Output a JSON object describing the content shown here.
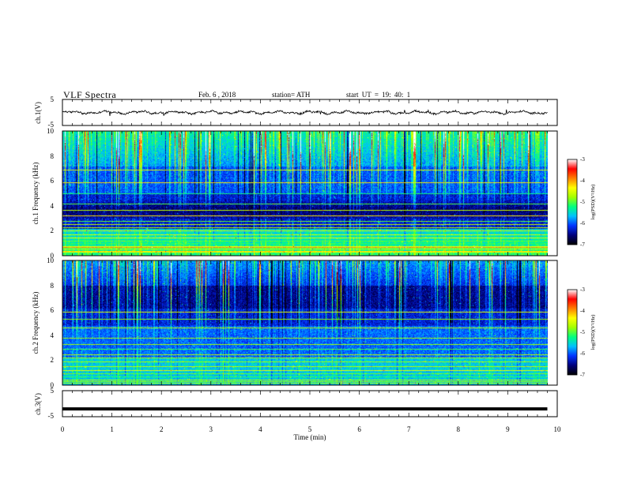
{
  "header": {
    "title": "VLF  Spectra",
    "date": "Feb. 6  , 2018",
    "station": "station= ATH",
    "start_ut": "start  UT  =   19: 40: 1"
  },
  "chart_data": [
    {
      "type": "line",
      "id": "ch1-waveform",
      "ylabel": "ch.1(V)",
      "ylim": [
        -5,
        5
      ],
      "y_ticks": [
        "5",
        "-5"
      ],
      "x_range_min": [
        0,
        9.8
      ],
      "approx_level_V": 0,
      "note_values": "noisy trace oscillating around 0 V with amplitude about ±0.7 V"
    },
    {
      "type": "heatmap",
      "id": "ch1-spectrogram",
      "ylabel": "ch.1 Frequency (kHz)",
      "ylim_kHz": [
        0,
        10
      ],
      "y_ticks": [
        "0",
        "2",
        "4",
        "6",
        "8",
        "10"
      ],
      "x_range_min": [
        0,
        9.8
      ],
      "colorbar": {
        "label": "log(PSD)(V²/Hz)",
        "range": [
          -7,
          -3
        ],
        "ticks": [
          "-3",
          "-4",
          "-5",
          "-6",
          "-7"
        ],
        "colors": [
          "#000000",
          "#00007a",
          "#0033ff",
          "#00c0ff",
          "#00ff80",
          "#a0ff00",
          "#ffff00",
          "#ff8000",
          "#ff0000",
          "#ffffff"
        ]
      }
    },
    {
      "type": "heatmap",
      "id": "ch2-spectrogram",
      "ylabel": "ch.2 Frequency (kHz)",
      "ylim_kHz": [
        0,
        10
      ],
      "y_ticks": [
        "0",
        "2",
        "4",
        "6",
        "8",
        "10"
      ],
      "x_range_min": [
        0,
        9.8
      ],
      "colorbar": {
        "label": "log(PSD)(V²/Hz)",
        "range": [
          -7,
          -3
        ],
        "ticks": [
          "-3",
          "-4",
          "-5",
          "-6",
          "-7"
        ],
        "colors": [
          "#000000",
          "#00007a",
          "#0033ff",
          "#00c0ff",
          "#00ff80",
          "#a0ff00",
          "#ffff00",
          "#ff8000",
          "#ff0000",
          "#ffffff"
        ]
      }
    },
    {
      "type": "line",
      "id": "ch3-waveform",
      "ylabel": "ch.3(V)",
      "ylim": [
        -5,
        5
      ],
      "y_ticks": [
        "5",
        "-5"
      ],
      "x_range_min": [
        0,
        9.8
      ],
      "approx_level_V": -2,
      "note_values": "flat trace near -2 V"
    }
  ],
  "x_axis": {
    "label": "Time  (min)",
    "ticks": [
      "0",
      "1",
      "2",
      "3",
      "4",
      "5",
      "6",
      "7",
      "8",
      "9",
      "10"
    ],
    "xlim": [
      0,
      10
    ]
  }
}
